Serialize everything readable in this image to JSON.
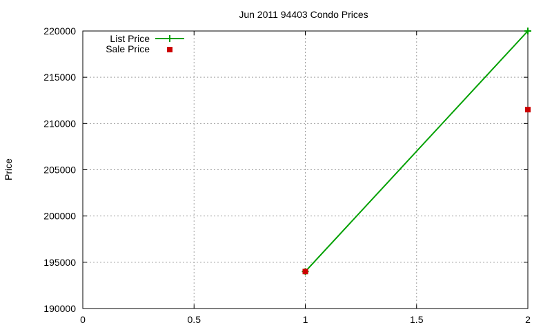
{
  "chart_data": {
    "type": "line",
    "title": "Jun 2011 94403 Condo Prices",
    "xlabel": "",
    "ylabel": "Price",
    "xlim": [
      0,
      2
    ],
    "ylim": [
      190000,
      220000
    ],
    "x_ticks": [
      "0",
      "0.5",
      "1",
      "1.5",
      "2"
    ],
    "y_ticks": [
      "190000",
      "195000",
      "200000",
      "205000",
      "210000",
      "215000",
      "220000"
    ],
    "grid": true,
    "legend_position": "top-left",
    "series": [
      {
        "name": "List Price",
        "style": "lines+points",
        "color": "#00a000",
        "x": [
          1,
          2
        ],
        "values": [
          194000,
          220000
        ]
      },
      {
        "name": "Sale Price",
        "style": "points",
        "color": "#cc0000",
        "x": [
          1,
          2
        ],
        "values": [
          194000,
          211500
        ]
      }
    ]
  }
}
